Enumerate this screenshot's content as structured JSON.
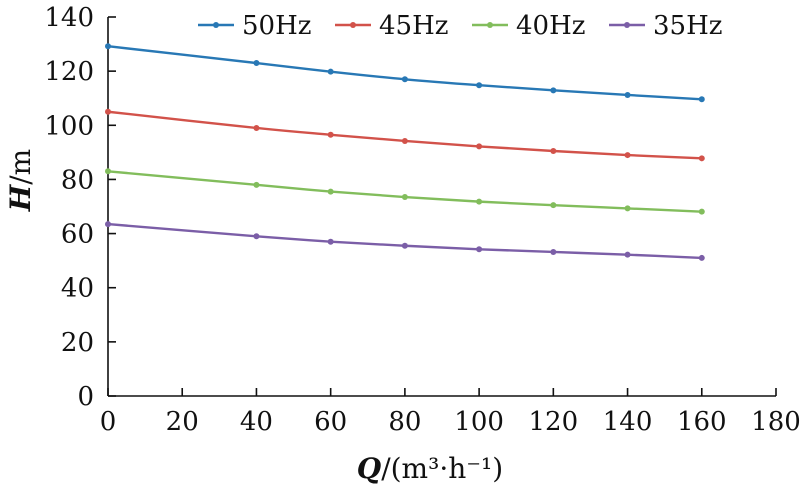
{
  "chart_data": {
    "type": "line",
    "xlabel": {
      "var": "Q",
      "unit": "/(m³·h⁻¹)"
    },
    "ylabel": {
      "var": "H",
      "unit": "/m"
    },
    "xlim": [
      0,
      180
    ],
    "ylim": [
      0,
      140
    ],
    "xticks": [
      0,
      20,
      40,
      60,
      80,
      100,
      120,
      140,
      160,
      180
    ],
    "yticks": [
      0,
      20,
      40,
      60,
      80,
      100,
      120,
      140
    ],
    "x": [
      0,
      40,
      60,
      80,
      100,
      120,
      140,
      160
    ],
    "legend_position": "top",
    "grid": false,
    "series": [
      {
        "name": "50Hz",
        "color": "#2878b5",
        "values": [
          129.2,
          123.0,
          119.8,
          117.0,
          114.8,
          112.9,
          111.2,
          109.6
        ]
      },
      {
        "name": "45Hz",
        "color": "#d2524a",
        "values": [
          105.0,
          99.0,
          96.5,
          94.2,
          92.2,
          90.5,
          89.0,
          87.8
        ]
      },
      {
        "name": "40Hz",
        "color": "#82bd5c",
        "values": [
          83.0,
          78.0,
          75.5,
          73.5,
          71.8,
          70.5,
          69.3,
          68.1
        ]
      },
      {
        "name": "35Hz",
        "color": "#7b5ea7",
        "values": [
          63.5,
          59.0,
          57.0,
          55.5,
          54.2,
          53.2,
          52.2,
          51.0
        ]
      }
    ]
  }
}
